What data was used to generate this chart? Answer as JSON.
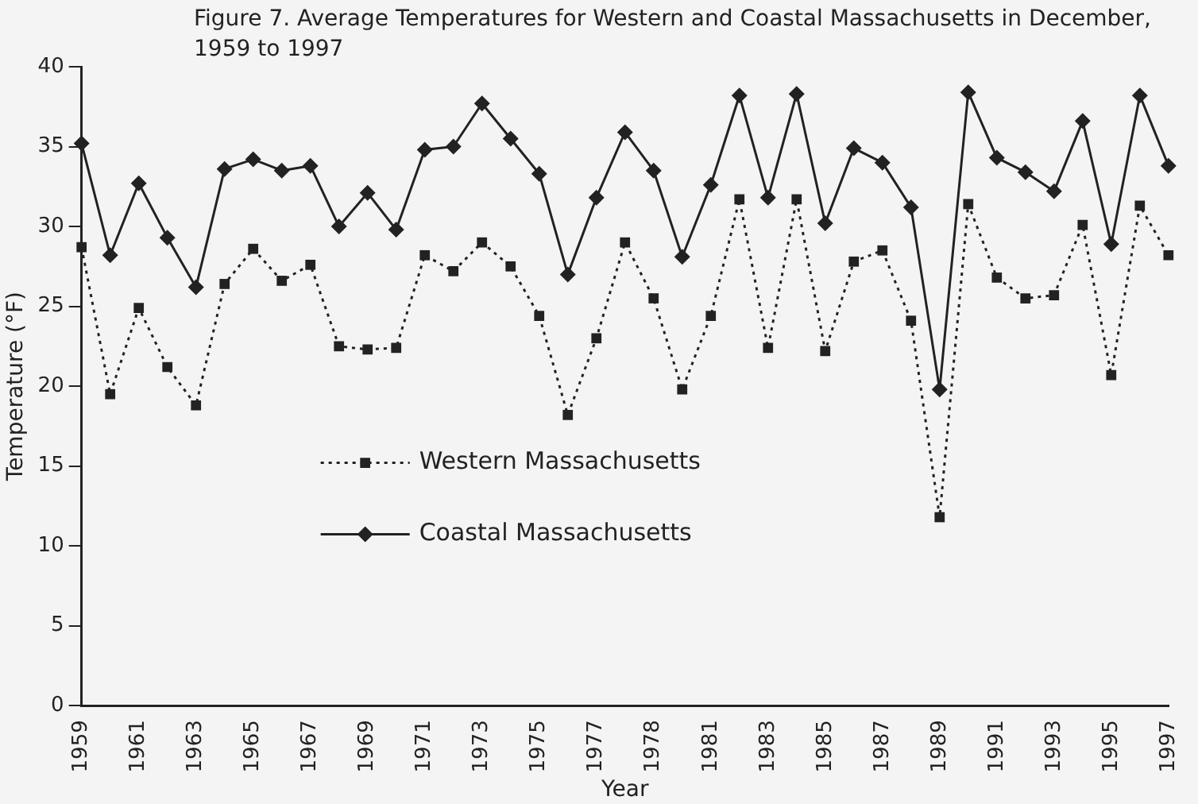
{
  "chart_data": {
    "type": "line",
    "title": "Figure 7.  Average Temperatures for Western and Coastal Massachusetts in December, 1959 to 1997",
    "xlabel": "Year",
    "ylabel": "Temperature (°F)",
    "categories": [
      "1959",
      null,
      "1961",
      null,
      "1963",
      null,
      "1965",
      null,
      "1967",
      null,
      "1969",
      null,
      "1971",
      null,
      "1973",
      null,
      "1975",
      null,
      "1977",
      null,
      "1978",
      null,
      "1981",
      null,
      "1983",
      null,
      "1985",
      null,
      "1987",
      null,
      "1989",
      null,
      "1991",
      null,
      "1993",
      null,
      "1995",
      null,
      "1997"
    ],
    "series": [
      {
        "name": "Western Massachusetts",
        "color": "#222222",
        "marker": "square",
        "line_style": "dotted",
        "values": [
          28.7,
          19.5,
          24.9,
          21.2,
          18.8,
          26.4,
          28.6,
          26.6,
          27.6,
          22.5,
          22.3,
          22.4,
          28.2,
          27.2,
          29.0,
          27.5,
          24.4,
          18.2,
          23.0,
          29.0,
          25.5,
          19.8,
          24.4,
          31.7,
          22.4,
          31.7,
          22.2,
          27.8,
          28.5,
          24.1,
          11.8,
          31.4,
          26.8,
          25.5,
          25.7,
          30.1,
          20.7,
          31.3,
          28.2
        ]
      },
      {
        "name": "Coastal Massachusetts",
        "color": "#222222",
        "marker": "diamond",
        "line_style": "solid",
        "values": [
          35.2,
          28.2,
          32.7,
          29.3,
          26.2,
          33.6,
          34.2,
          33.5,
          33.8,
          30.0,
          32.1,
          29.8,
          34.8,
          35.0,
          37.7,
          35.5,
          33.3,
          27.0,
          31.8,
          35.9,
          33.5,
          28.1,
          32.6,
          38.2,
          31.8,
          38.3,
          30.2,
          34.9,
          34.0,
          31.2,
          19.8,
          38.4,
          34.3,
          33.4,
          32.2,
          36.6,
          28.9,
          38.2,
          33.8
        ]
      }
    ],
    "ylim": [
      0,
      40
    ],
    "yticks": [
      0,
      5,
      10,
      15,
      20,
      25,
      30,
      35,
      40
    ],
    "grid": false,
    "legend": "center left"
  }
}
